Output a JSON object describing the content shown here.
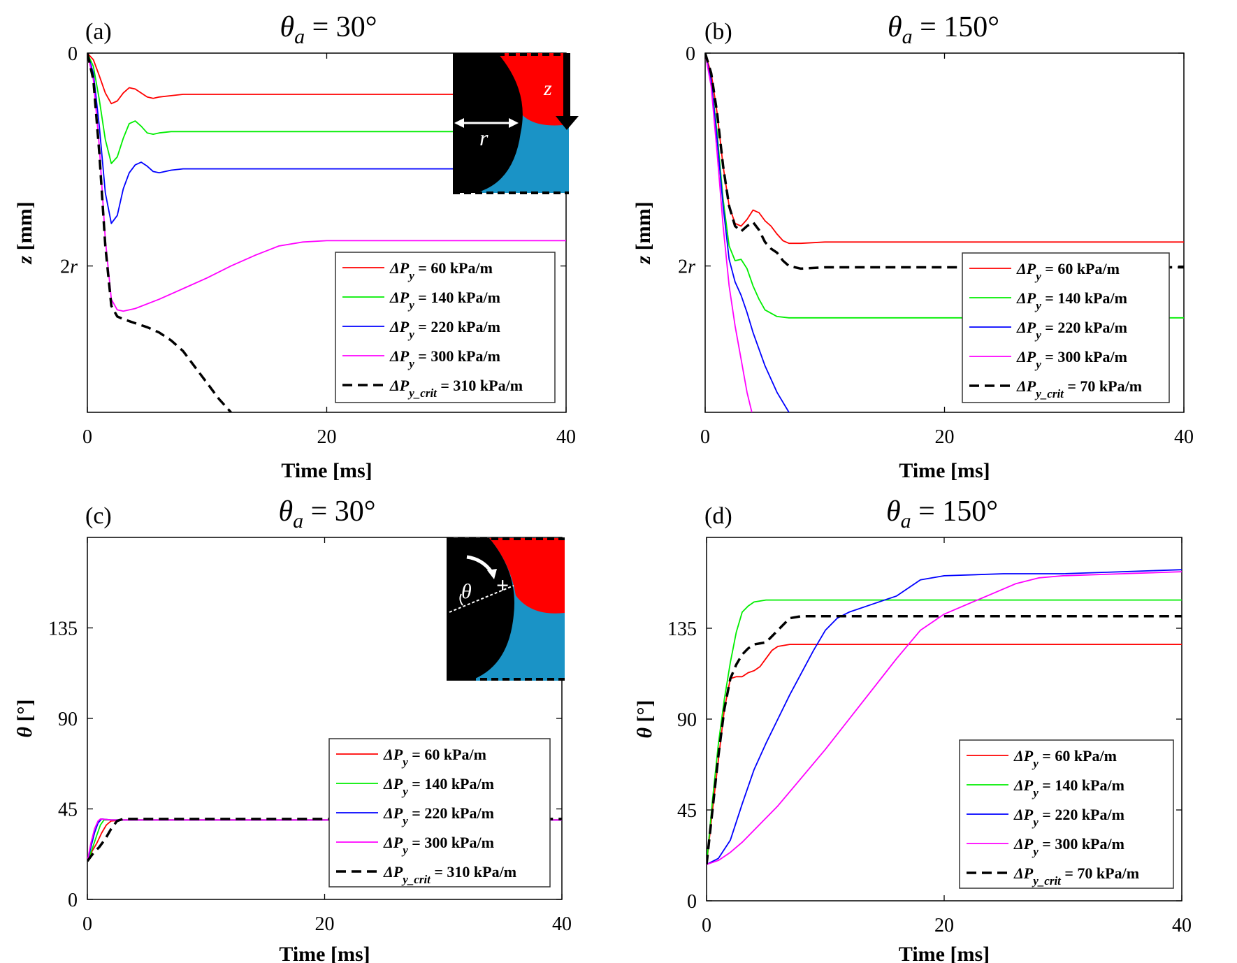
{
  "figure": "four-panel line chart figure",
  "chart_data": [
    {
      "type": "line",
      "panel": "(a)",
      "title": "θa = 30°",
      "xlabel": "Time [ms]",
      "ylabel": "z [mm]",
      "xlim": [
        0,
        40
      ],
      "ylim": [
        0,
        2.7
      ],
      "y_inverted": true,
      "xticks": [
        0,
        20,
        40
      ],
      "xtick_labels": [
        "0",
        "20",
        "40"
      ],
      "yticks": [
        0,
        1.6
      ],
      "ytick_labels": [
        "0",
        "2r"
      ],
      "legend_position": "lower-right",
      "inset": {
        "labels": [
          "z",
          "r"
        ],
        "description": "pore schematic: solid grain radius r, interface displacement z"
      },
      "series": [
        {
          "name": "ΔPy = 60 kPa/m",
          "color": "#ff0000",
          "dash": "solid",
          "x": [
            0,
            0.5,
            1,
            1.5,
            2,
            2.5,
            3,
            3.5,
            4,
            4.5,
            5,
            5.5,
            6,
            7,
            8,
            10,
            15,
            20,
            30,
            40
          ],
          "y": [
            0,
            0.05,
            0.17,
            0.3,
            0.38,
            0.36,
            0.3,
            0.26,
            0.27,
            0.3,
            0.33,
            0.34,
            0.33,
            0.32,
            0.31,
            0.31,
            0.31,
            0.31,
            0.31,
            0.31
          ]
        },
        {
          "name": "ΔPy = 140 kPa/m",
          "color": "#00ee00",
          "dash": "solid",
          "x": [
            0,
            0.5,
            1,
            1.5,
            2,
            2.5,
            3,
            3.5,
            4,
            4.5,
            5,
            5.5,
            6,
            7,
            8,
            10,
            15,
            20,
            30,
            40
          ],
          "y": [
            0,
            0.1,
            0.35,
            0.65,
            0.83,
            0.78,
            0.64,
            0.53,
            0.51,
            0.55,
            0.6,
            0.61,
            0.6,
            0.59,
            0.59,
            0.59,
            0.59,
            0.59,
            0.59,
            0.59
          ]
        },
        {
          "name": "ΔPy = 220 kPa/m",
          "color": "#0000ff",
          "dash": "solid",
          "x": [
            0,
            0.5,
            1,
            1.5,
            2,
            2.5,
            3,
            3.5,
            4,
            4.5,
            5,
            5.5,
            6,
            7,
            8,
            10,
            15,
            20,
            30,
            40
          ],
          "y": [
            0,
            0.15,
            0.55,
            1.05,
            1.28,
            1.22,
            1.02,
            0.9,
            0.84,
            0.82,
            0.85,
            0.89,
            0.9,
            0.88,
            0.87,
            0.87,
            0.87,
            0.87,
            0.87,
            0.87
          ]
        },
        {
          "name": "ΔPy = 300 kPa/m",
          "color": "#ff00ff",
          "dash": "solid",
          "x": [
            0,
            0.5,
            1,
            1.5,
            2,
            2.5,
            3,
            4,
            6,
            8,
            10,
            12,
            14,
            16,
            18,
            20,
            30,
            40
          ],
          "y": [
            0,
            0.2,
            0.7,
            1.4,
            1.85,
            1.93,
            1.94,
            1.92,
            1.85,
            1.77,
            1.69,
            1.6,
            1.52,
            1.45,
            1.42,
            1.41,
            1.41,
            1.41
          ]
        },
        {
          "name": "ΔPy_crit = 310 kPa/m",
          "color": "#000000",
          "dash": "dashed",
          "x": [
            0,
            0.5,
            1,
            1.5,
            2,
            2.5,
            3,
            4,
            5,
            6,
            7,
            8,
            9,
            10,
            11,
            12
          ],
          "y": [
            0,
            0.2,
            0.75,
            1.45,
            1.9,
            1.98,
            2.0,
            2.03,
            2.06,
            2.1,
            2.16,
            2.24,
            2.36,
            2.48,
            2.6,
            2.7
          ]
        }
      ]
    },
    {
      "type": "line",
      "panel": "(b)",
      "title": "θa = 150°",
      "xlabel": "Time [ms]",
      "ylabel": "z [mm]",
      "xlim": [
        0,
        40
      ],
      "ylim": [
        0,
        2.7
      ],
      "y_inverted": true,
      "xticks": [
        0,
        20,
        40
      ],
      "xtick_labels": [
        "0",
        "20",
        "40"
      ],
      "yticks": [
        0,
        1.6
      ],
      "ytick_labels": [
        "0",
        "2r"
      ],
      "legend_position": "lower-right",
      "series": [
        {
          "name": "ΔPy = 60 kPa/m",
          "color": "#ff0000",
          "dash": "solid",
          "x": [
            0,
            0.5,
            1,
            1.5,
            2,
            2.5,
            3,
            3.5,
            4,
            4.5,
            5,
            5.5,
            6,
            6.5,
            7,
            8,
            10,
            20,
            30,
            40
          ],
          "y": [
            0,
            0.15,
            0.45,
            0.85,
            1.15,
            1.28,
            1.3,
            1.25,
            1.18,
            1.2,
            1.26,
            1.3,
            1.36,
            1.41,
            1.43,
            1.43,
            1.42,
            1.42,
            1.42,
            1.42
          ]
        },
        {
          "name": "ΔPy = 140 kPa/m",
          "color": "#00ee00",
          "dash": "solid",
          "x": [
            0,
            0.5,
            1,
            1.5,
            2,
            2.5,
            3,
            3.5,
            4,
            4.5,
            5,
            6,
            7,
            8,
            10,
            20,
            30,
            40
          ],
          "y": [
            0,
            0.2,
            0.6,
            1.1,
            1.45,
            1.56,
            1.55,
            1.62,
            1.75,
            1.85,
            1.93,
            1.98,
            1.99,
            1.99,
            1.99,
            1.99,
            1.99,
            1.99
          ]
        },
        {
          "name": "ΔPy = 220 kPa/m",
          "color": "#0000ff",
          "dash": "solid",
          "x": [
            0,
            0.5,
            1,
            1.5,
            2,
            2.5,
            3,
            3.5,
            4,
            5,
            6,
            7
          ],
          "y": [
            0,
            0.2,
            0.65,
            1.15,
            1.55,
            1.72,
            1.82,
            1.95,
            2.1,
            2.35,
            2.55,
            2.7
          ]
        },
        {
          "name": "ΔPy = 300 kPa/m",
          "color": "#ff00ff",
          "dash": "solid",
          "x": [
            0,
            0.5,
            1,
            1.5,
            2,
            2.5,
            3,
            3.5,
            3.9
          ],
          "y": [
            0,
            0.25,
            0.75,
            1.3,
            1.75,
            2.05,
            2.3,
            2.55,
            2.7
          ]
        },
        {
          "name": "ΔPy_crit = 70 kPa/m",
          "color": "#000000",
          "dash": "dashed",
          "x": [
            0,
            0.5,
            1,
            1.5,
            2,
            2.5,
            3,
            3.5,
            4,
            4.5,
            5,
            5.5,
            6,
            6.5,
            7,
            8,
            10,
            20,
            30,
            40
          ],
          "y": [
            0,
            0.15,
            0.45,
            0.85,
            1.15,
            1.3,
            1.34,
            1.3,
            1.27,
            1.33,
            1.42,
            1.47,
            1.5,
            1.56,
            1.6,
            1.62,
            1.61,
            1.61,
            1.61,
            1.61
          ]
        }
      ]
    },
    {
      "type": "line",
      "panel": "(c)",
      "title": "θa = 30°",
      "xlabel": "Time [ms]",
      "ylabel": "θ [°]",
      "xlim": [
        0,
        40
      ],
      "ylim": [
        0,
        180
      ],
      "xticks": [
        0,
        20,
        40
      ],
      "xtick_labels": [
        "0",
        "20",
        "40"
      ],
      "yticks": [
        0,
        45,
        90,
        135
      ],
      "ytick_labels": [
        "0",
        "45",
        "90",
        "135"
      ],
      "legend_position": "lower-right",
      "inset": {
        "labels": [
          "θ",
          "+"
        ],
        "description": "pore schematic showing contact angle θ"
      },
      "series": [
        {
          "name": "ΔPy = 60 kPa/m",
          "color": "#ff0000",
          "dash": "solid",
          "x": [
            0,
            0.4,
            0.8,
            1.2,
            1.6,
            2,
            3,
            40
          ],
          "y": [
            19,
            24,
            28,
            33,
            37,
            39,
            39.5,
            39.5
          ]
        },
        {
          "name": "ΔPy = 140 kPa/m",
          "color": "#00ee00",
          "dash": "solid",
          "x": [
            0,
            0.4,
            0.8,
            1.1,
            1.4,
            2,
            40
          ],
          "y": [
            19,
            25,
            32,
            37,
            39.5,
            39.5,
            39.5
          ]
        },
        {
          "name": "ΔPy = 220 kPa/m",
          "color": "#0000ff",
          "dash": "solid",
          "x": [
            0,
            0.3,
            0.6,
            0.9,
            1.2,
            2,
            40
          ],
          "y": [
            19,
            26,
            33,
            38,
            40,
            39.5,
            39.5
          ]
        },
        {
          "name": "ΔPy = 300 kPa/m",
          "color": "#ff00ff",
          "dash": "solid",
          "x": [
            0,
            0.3,
            0.6,
            0.9,
            1.1,
            2,
            40
          ],
          "y": [
            19,
            28,
            35,
            39,
            40,
            39.5,
            39.5
          ]
        },
        {
          "name": "ΔPy_crit = 310 kPa/m",
          "color": "#000000",
          "dash": "dashed",
          "x": [
            0,
            0.5,
            1,
            1.5,
            2,
            2.5,
            3,
            40
          ],
          "y": [
            19,
            23,
            26,
            30,
            35,
            39,
            40,
            40
          ]
        }
      ]
    },
    {
      "type": "line",
      "panel": "(d)",
      "title": "θa = 150°",
      "xlabel": "Time [ms]",
      "ylabel": "θ [°]",
      "xlim": [
        0,
        40
      ],
      "ylim": [
        0,
        180
      ],
      "xticks": [
        0,
        20,
        40
      ],
      "xtick_labels": [
        "0",
        "20",
        "40"
      ],
      "yticks": [
        0,
        45,
        90,
        135
      ],
      "ytick_labels": [
        "0",
        "45",
        "90",
        "135"
      ],
      "legend_position": "lower-right",
      "series": [
        {
          "name": "ΔPy = 60 kPa/m",
          "color": "#ff0000",
          "dash": "solid",
          "x": [
            0,
            0.5,
            1,
            1.5,
            2,
            2.5,
            3,
            3.5,
            4,
            4.5,
            5,
            5.5,
            6,
            7,
            8,
            10,
            20,
            30,
            40
          ],
          "y": [
            18,
            45,
            70,
            95,
            110,
            111,
            111,
            113,
            114,
            116,
            120,
            124,
            126,
            127,
            127,
            127,
            127,
            127,
            127
          ]
        },
        {
          "name": "ΔPy = 140 kPa/m",
          "color": "#00ee00",
          "dash": "solid",
          "x": [
            0,
            0.5,
            1,
            1.5,
            2,
            2.5,
            3,
            3.5,
            4,
            5,
            6,
            8,
            10,
            20,
            30,
            40
          ],
          "y": [
            18,
            50,
            78,
            100,
            118,
            133,
            143,
            146,
            148,
            149,
            149,
            149,
            149,
            149,
            149,
            149
          ]
        },
        {
          "name": "ΔPy = 220 kPa/m",
          "color": "#0000ff",
          "dash": "solid",
          "x": [
            0,
            1,
            2,
            3,
            4,
            5,
            6,
            7,
            8,
            9,
            10,
            11,
            12,
            14,
            16,
            18,
            20,
            25,
            30,
            35,
            40
          ],
          "y": [
            18,
            21,
            30,
            48,
            65,
            78,
            90,
            102,
            113,
            124,
            134,
            140,
            143,
            147,
            151,
            159,
            161,
            162,
            162,
            163,
            164
          ]
        },
        {
          "name": "ΔPy = 300 kPa/m",
          "color": "#ff00ff",
          "dash": "solid",
          "x": [
            0,
            1,
            2,
            3,
            4,
            6,
            8,
            10,
            12,
            14,
            16,
            18,
            20,
            22,
            24,
            26,
            28,
            30,
            35,
            40
          ],
          "y": [
            18,
            20,
            24,
            29,
            35,
            47,
            61,
            75,
            90,
            105,
            120,
            134,
            142,
            147,
            152,
            157,
            160,
            161,
            162,
            163
          ]
        },
        {
          "name": "ΔPy_crit = 70 kPa/m",
          "color": "#000000",
          "dash": "dashed",
          "x": [
            0,
            0.5,
            1,
            1.5,
            2,
            2.5,
            3,
            3.5,
            4,
            5,
            6,
            7,
            8,
            10,
            20,
            30,
            40
          ],
          "y": [
            18,
            45,
            72,
            95,
            110,
            117,
            122,
            125,
            127,
            128,
            134,
            140,
            141,
            141,
            141,
            141,
            141
          ]
        }
      ]
    }
  ]
}
